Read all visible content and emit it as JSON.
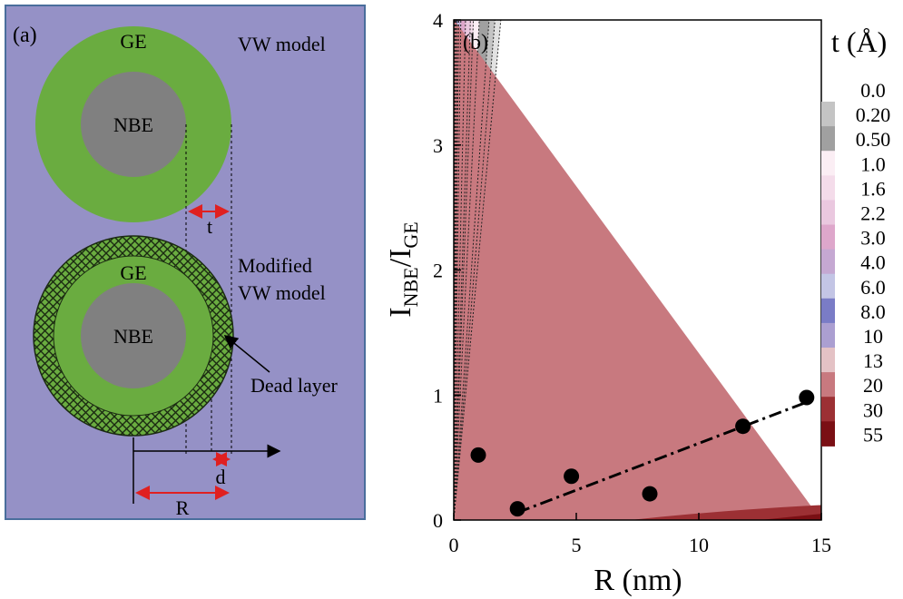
{
  "panel_a": {
    "label": "(a)",
    "top_model": {
      "shell_label": "GE",
      "core_label": "NBE",
      "model_name": "VW model",
      "thickness_label": "t"
    },
    "bottom_model": {
      "shell_label": "GE",
      "core_label": "NBE",
      "model_name_line1": "Modified",
      "model_name_line2": "VW model",
      "dead_layer_label": "Dead layer",
      "d_label": "d",
      "r_label": "R"
    },
    "colors": {
      "background": "#9591c6",
      "shell": "#6aac40",
      "core": "#808080",
      "arrow": "#e02020"
    }
  },
  "chart_data": {
    "type": "contour",
    "panel_label": "(b)",
    "xlabel": "R (nm)",
    "ylabel_main": "I",
    "ylabel_sub1": "NBE",
    "ylabel_sep": "/I",
    "ylabel_sub2": "GE",
    "xlim": [
      0,
      15
    ],
    "ylim": [
      0,
      4
    ],
    "xticks": [
      "0",
      "5",
      "10",
      "15"
    ],
    "yticks": [
      "0",
      "1",
      "2",
      "3",
      "4"
    ],
    "colorbar": {
      "title": "t (Å)",
      "levels": [
        "0.0",
        "0.20",
        "0.50",
        "1.0",
        "1.6",
        "2.2",
        "3.0",
        "4.0",
        "6.0",
        "8.0",
        "10",
        "13",
        "20",
        "30",
        "55"
      ],
      "colors": [
        "#e2e2e2",
        "#c4c4c4",
        "#a0a0a0",
        "#fbeef4",
        "#f4dcea",
        "#eac8df",
        "#dea7cb",
        "#c5a8d2",
        "#c3c5e5",
        "#7a7cc6",
        "#ab9fd1",
        "#e4c2c5",
        "#c8797f",
        "#9c3034",
        "#7a0f14"
      ]
    },
    "contour_slopes": [
      0.48,
      0.42,
      0.36,
      0.26,
      0.2,
      0.17,
      0.12,
      0.072,
      0.05,
      0.037,
      0.023,
      0.0135,
      0.0057
    ],
    "band_colors": [
      "#ffffff",
      "#e2e2e2",
      "#c4c4c4",
      "#a0a0a0",
      "#fbeef4",
      "#f4dcea",
      "#eac8df",
      "#dea7cb",
      "#c5a8d2",
      "#c3c5e5",
      "#7a7cc6",
      "#ab9fd1",
      "#e4c2c5",
      "#c8797f"
    ],
    "deep_region_color": "#9c3034",
    "data_points": [
      {
        "x": 1.0,
        "y": 0.52
      },
      {
        "x": 2.6,
        "y": 0.09
      },
      {
        "x": 4.8,
        "y": 0.35
      },
      {
        "x": 8.0,
        "y": 0.21
      },
      {
        "x": 11.8,
        "y": 0.75
      },
      {
        "x": 14.4,
        "y": 0.98
      }
    ],
    "fit_line": {
      "x0": 2.6,
      "y0": 0.06,
      "x1": 14.5,
      "y1": 0.95
    }
  }
}
